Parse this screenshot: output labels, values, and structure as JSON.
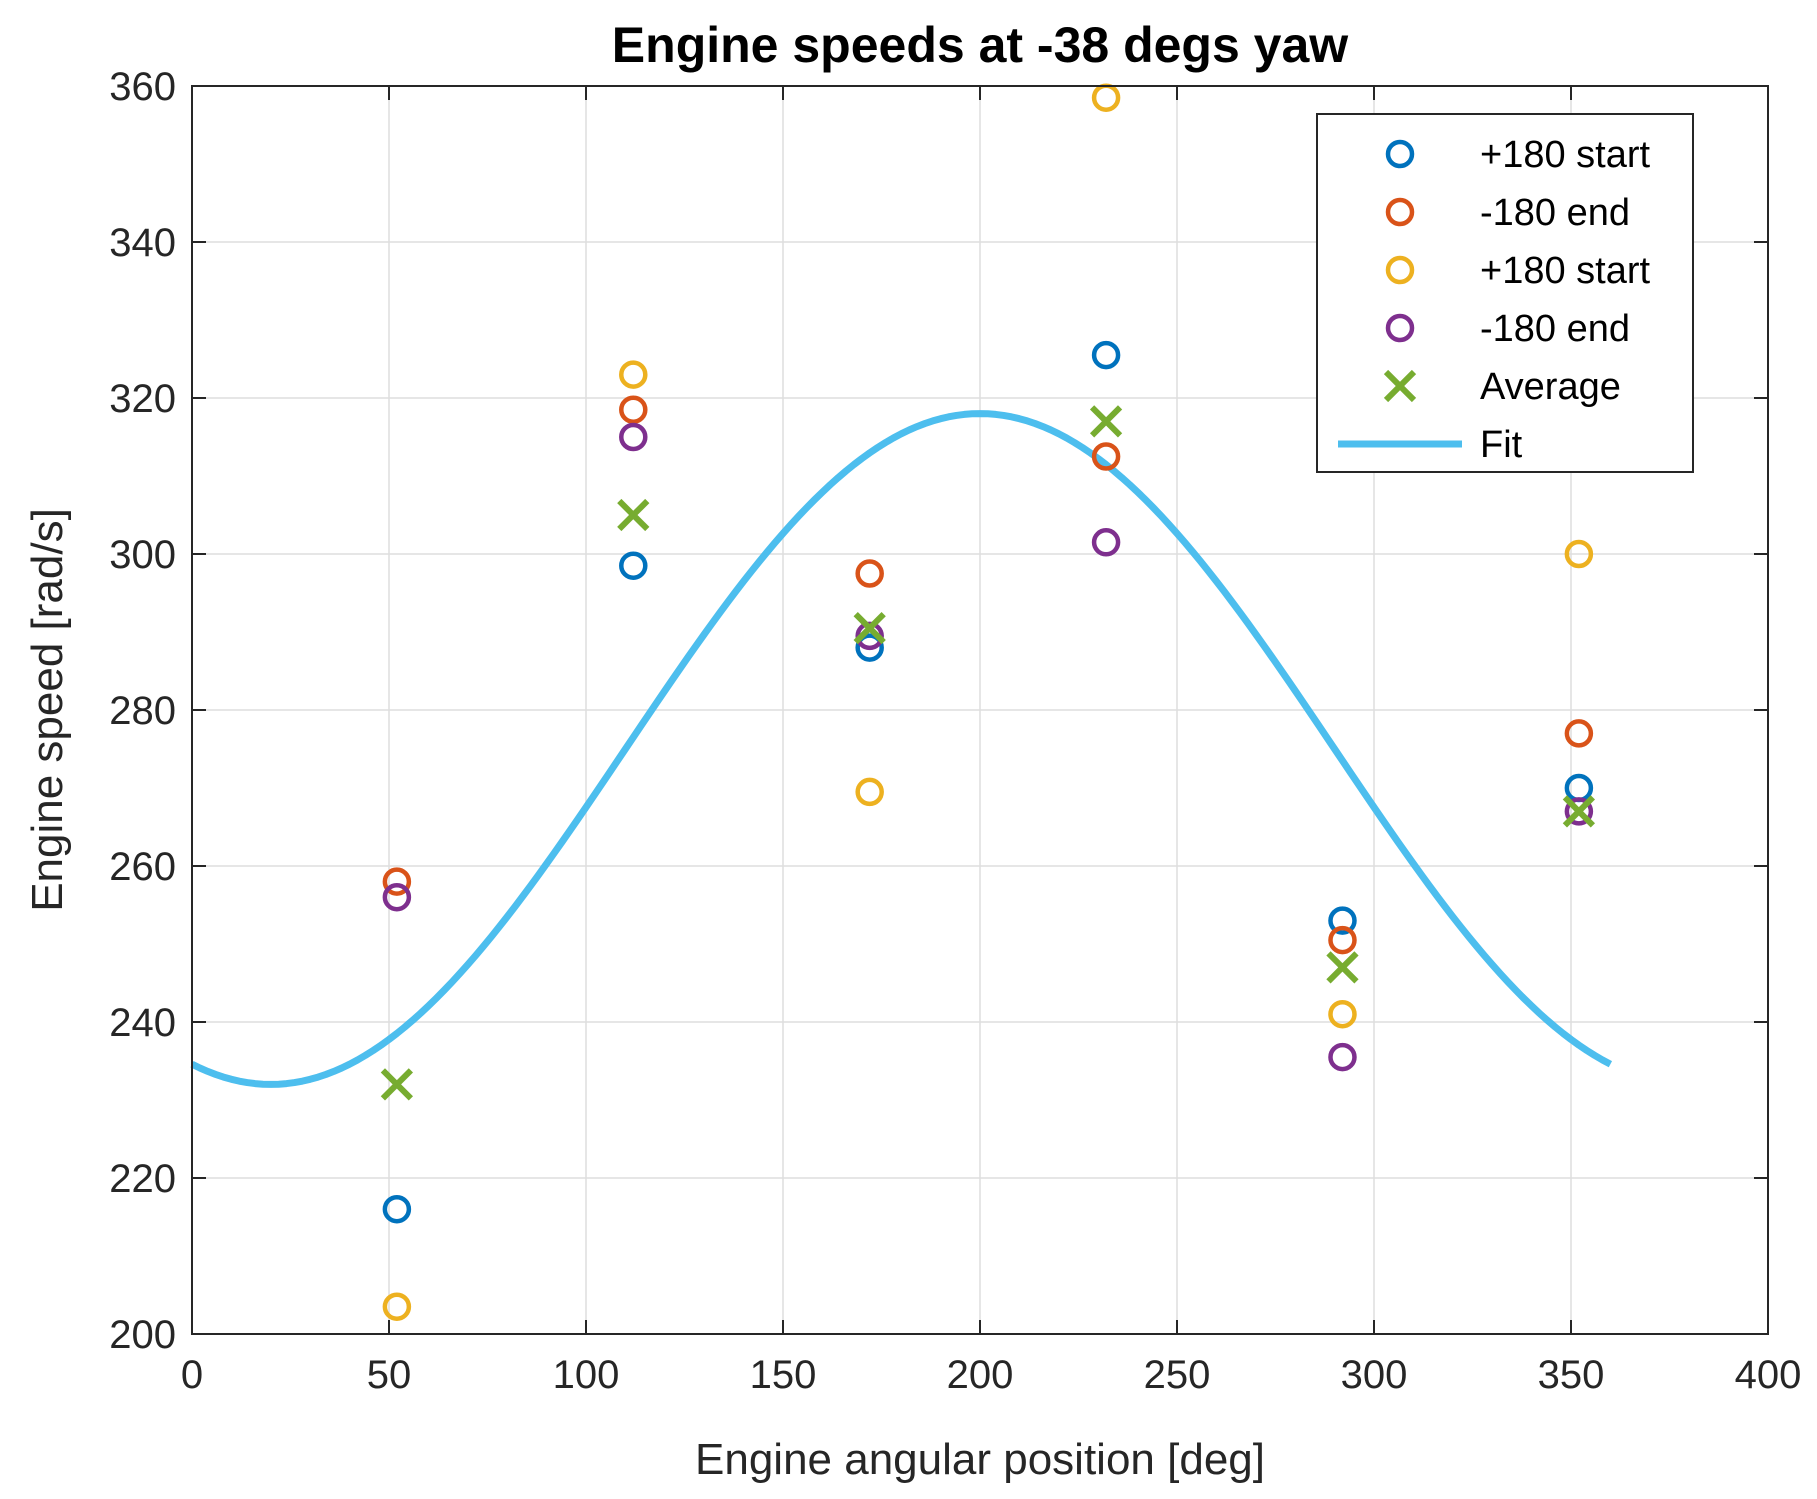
{
  "chart_data": {
    "type": "scatter",
    "title": "Engine speeds at -38 degs yaw",
    "xlabel": "Engine angular position [deg]",
    "ylabel": "Engine speed [rad/s]",
    "xlim": [
      0,
      400
    ],
    "ylim": [
      200,
      360
    ],
    "xticks": [
      0,
      50,
      100,
      150,
      200,
      250,
      300,
      350,
      400
    ],
    "yticks": [
      200,
      220,
      240,
      260,
      280,
      300,
      320,
      340,
      360
    ],
    "grid": true,
    "legend_position": "top-right",
    "series": [
      {
        "name": "+180 start",
        "marker": "circle",
        "color": "#0072BD",
        "x": [
          52,
          112,
          172,
          232,
          292,
          352
        ],
        "y": [
          216,
          298.5,
          288,
          325.5,
          253,
          270
        ]
      },
      {
        "name": "-180 end",
        "marker": "circle",
        "color": "#D95319",
        "x": [
          52,
          112,
          172,
          232,
          292,
          352
        ],
        "y": [
          258,
          318.5,
          297.5,
          312.5,
          250.5,
          277
        ]
      },
      {
        "name": "+180 start",
        "marker": "circle",
        "color": "#EDB120",
        "x": [
          52,
          112,
          172,
          232,
          292,
          352
        ],
        "y": [
          203.5,
          323,
          269.5,
          358.5,
          241,
          300
        ]
      },
      {
        "name": "-180 end",
        "marker": "circle",
        "color": "#7E2F8E",
        "x": [
          52,
          112,
          172,
          232,
          292,
          352
        ],
        "y": [
          256,
          315,
          289.5,
          301.5,
          235.5,
          267
        ]
      },
      {
        "name": "Average",
        "marker": "x",
        "color": "#77AC30",
        "x": [
          52,
          112,
          172,
          232,
          292,
          352
        ],
        "y": [
          232,
          305,
          290.5,
          317,
          247,
          267
        ]
      },
      {
        "name": "Fit",
        "marker": "line",
        "color": "#4DBEEE",
        "function": "275 + 43*cos(x - 200 deg)",
        "x": [
          0,
          20,
          40,
          60,
          80,
          100,
          120,
          140,
          160,
          180,
          200,
          220,
          240,
          260,
          280,
          300,
          320,
          340,
          360
        ],
        "y": [
          234.6,
          232,
          234.6,
          242.1,
          253.5,
          267.5,
          282.5,
          296.5,
          307.9,
          315.4,
          318,
          315.4,
          307.9,
          296.5,
          282.5,
          267.5,
          253.5,
          242.1,
          234.6
        ]
      }
    ]
  }
}
